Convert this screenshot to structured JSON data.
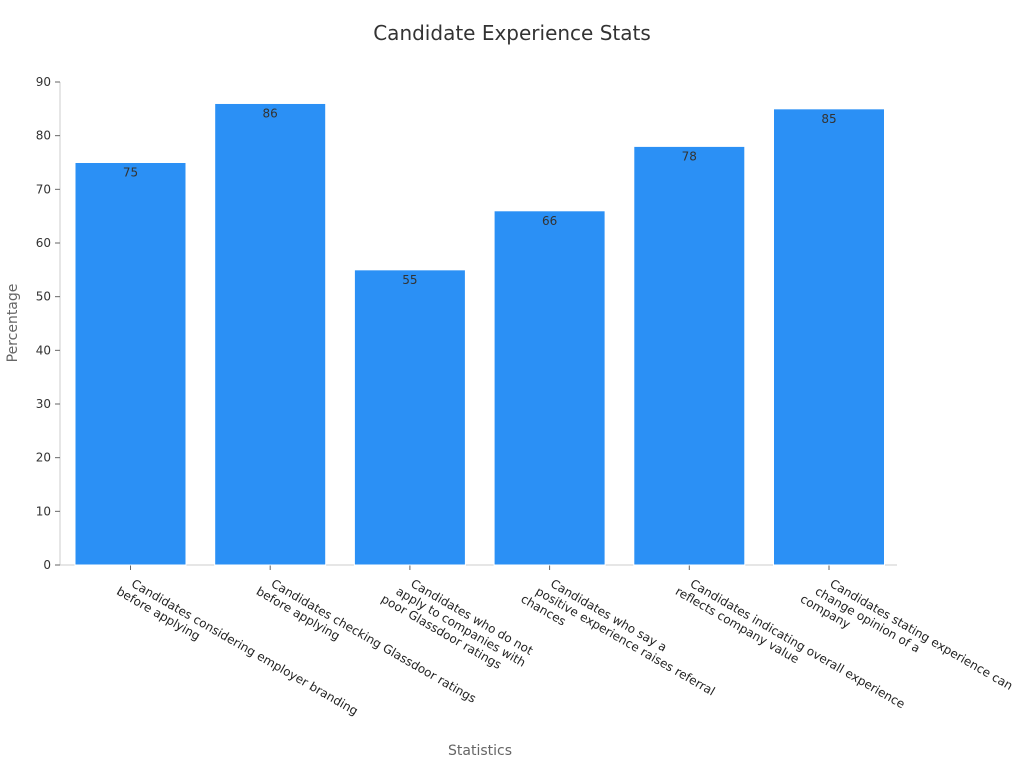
{
  "chart_data": {
    "type": "bar",
    "title": "Candidate Experience Stats",
    "xlabel": "Statistics",
    "ylabel": "Percentage",
    "ylim": [
      0,
      90
    ],
    "yticks": [
      0,
      10,
      20,
      30,
      40,
      50,
      60,
      70,
      80,
      90
    ],
    "grid": false,
    "legend": "none",
    "bar_color": "#2b90f5",
    "categories": [
      [
        "Candidates considering employer branding",
        "before applying"
      ],
      [
        "Candidates checking Glassdoor ratings",
        "before applying"
      ],
      [
        "Candidates who do not",
        "apply to companies with",
        "poor Glassdoor ratings"
      ],
      [
        "Candidates who say a",
        "positive experience raises referral",
        "chances"
      ],
      [
        "Candidates indicating overall experience",
        "reflects company value"
      ],
      [
        "Candidates stating experience can",
        "change opinion of a",
        "company"
      ]
    ],
    "values": [
      75,
      86,
      55,
      66,
      78,
      85
    ]
  }
}
